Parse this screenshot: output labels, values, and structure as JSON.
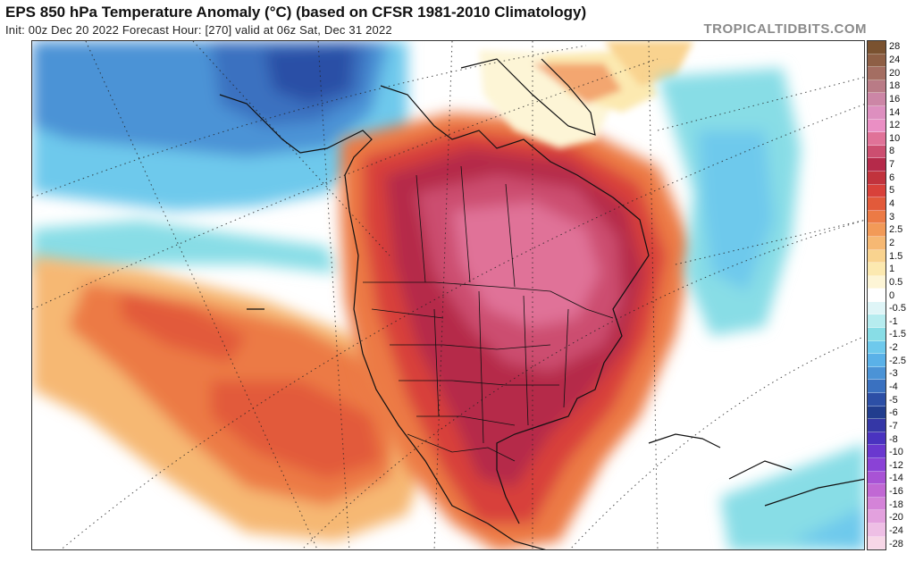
{
  "header": {
    "title": "EPS 850 hPa Temperature Anomaly (°C) (based on CFSR 1981-2010 Climatology)",
    "subtitle": "Init: 00z Dec 20 2022   Forecast Hour: [270]   valid at 06z Sat, Dec 31 2022",
    "credit": "TROPICALTIDBITS.COM"
  },
  "colorbar": {
    "labels": [
      "28",
      "24",
      "20",
      "18",
      "16",
      "14",
      "12",
      "10",
      "8",
      "7",
      "6",
      "5",
      "4",
      "3",
      "2.5",
      "2",
      "1.5",
      "1",
      "0.5",
      "0",
      "-0.5",
      "-1",
      "-1.5",
      "-2",
      "-2.5",
      "-3",
      "-4",
      "-5",
      "-6",
      "-7",
      "-8",
      "-10",
      "-12",
      "-14",
      "-16",
      "-18",
      "-20",
      "-24",
      "-28"
    ],
    "colors": [
      "#7a5230",
      "#8e5f45",
      "#a46e62",
      "#b97b86",
      "#cc86a6",
      "#dd8fbf",
      "#ea8fc4",
      "#e07298",
      "#cc4e70",
      "#b52a4a",
      "#c1333d",
      "#d8413a",
      "#e25a3a",
      "#ec7a45",
      "#f29a58",
      "#f6b873",
      "#f9d38f",
      "#fce9b0",
      "#fdf5d6",
      "#ffffff",
      "#dff5f7",
      "#b6ecef",
      "#88dde6",
      "#6ec9ec",
      "#5ab1e8",
      "#4b93d6",
      "#3a71c0",
      "#2c4fa6",
      "#213d8e",
      "#3537a6",
      "#4a33c0",
      "#6a38cf",
      "#8a42d6",
      "#a853d5",
      "#c168d4",
      "#d483d8",
      "#e3a1de",
      "#eebfe5",
      "#f7d7e7"
    ]
  },
  "map": {
    "region": "North America and surrounding oceans",
    "anomaly_summary": "Strong warm anomaly (+6 to +10) over central/eastern Canada and US; cold anomaly (-3 to -8) over Alaska and Bering Sea"
  }
}
